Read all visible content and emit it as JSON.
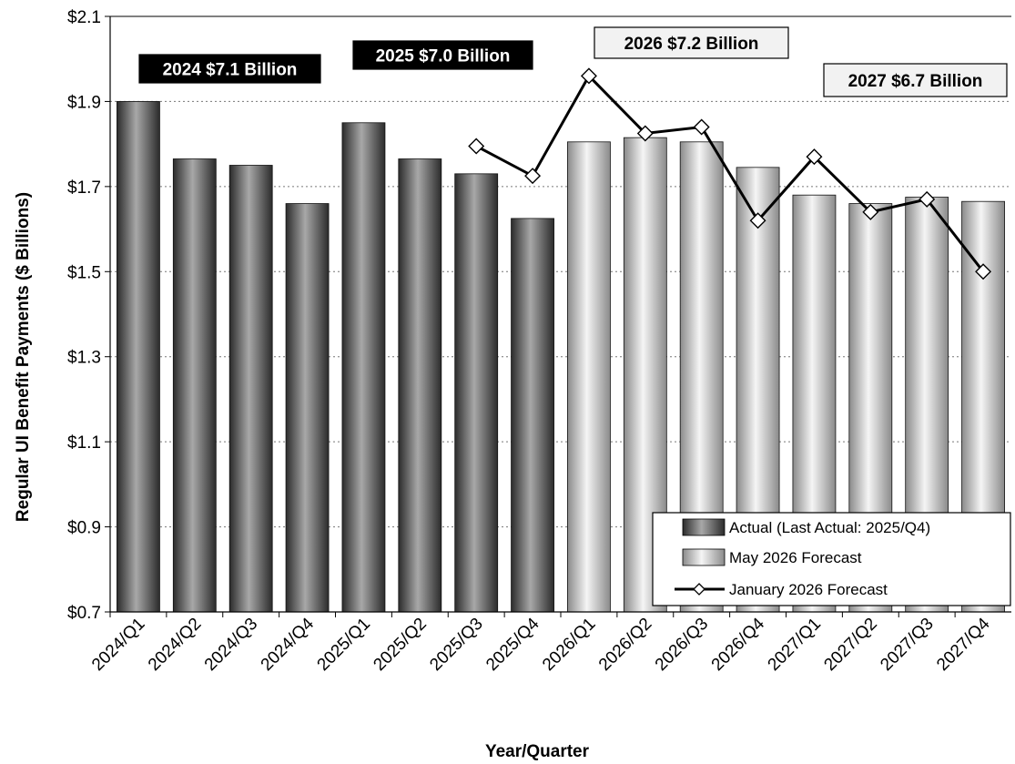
{
  "chart_data": {
    "type": "bar",
    "title": "",
    "xlabel": "Year/Quarter",
    "ylabel": "Regular UI Benefit Payments ($ Billions)",
    "ylim": [
      0.7,
      2.1
    ],
    "ytick_values": [
      0.7,
      0.9,
      1.1,
      1.3,
      1.5,
      1.7,
      1.9,
      2.1
    ],
    "ytick_labels": [
      "$0.7",
      "$0.9",
      "$1.1",
      "$1.3",
      "$1.5",
      "$1.7",
      "$1.9",
      "$2.1"
    ],
    "grid": "horizontal dotted",
    "legend_position": "bottom-right",
    "categories": [
      "2024/Q1",
      "2024/Q2",
      "2024/Q3",
      "2024/Q4",
      "2025/Q1",
      "2025/Q2",
      "2025/Q3",
      "2025/Q4",
      "2026/Q1",
      "2026/Q2",
      "2026/Q3",
      "2026/Q4",
      "2027/Q1",
      "2027/Q2",
      "2027/Q3",
      "2027/Q4"
    ],
    "series": [
      {
        "name": "Actual (Last Actual: 2025/Q4)",
        "kind": "bar",
        "style": "dark",
        "values": [
          1.9,
          1.765,
          1.75,
          1.66,
          1.85,
          1.765,
          1.73,
          1.625,
          null,
          null,
          null,
          null,
          null,
          null,
          null,
          null
        ]
      },
      {
        "name": "May 2026 Forecast",
        "kind": "bar",
        "style": "light",
        "values": [
          null,
          null,
          null,
          null,
          null,
          null,
          null,
          null,
          1.805,
          1.815,
          1.805,
          1.745,
          1.68,
          1.66,
          1.675,
          1.665
        ]
      },
      {
        "name": "January 2026 Forecast",
        "kind": "line",
        "values": [
          null,
          null,
          null,
          null,
          null,
          null,
          1.795,
          1.725,
          1.96,
          1.825,
          1.84,
          1.62,
          1.77,
          1.64,
          1.67,
          1.5
        ]
      }
    ],
    "annotations": [
      {
        "text": "2024 $7.1 Billion",
        "style": "dark"
      },
      {
        "text": "2025 $7.0 Billion",
        "style": "dark"
      },
      {
        "text": "2026 $7.2 Billion",
        "style": "light"
      },
      {
        "text": "2027 $6.7 Billion",
        "style": "light"
      }
    ],
    "colors": {
      "actual_dark": "#3a3a3a",
      "actual_mid": "#9a9a9a",
      "forecast_dark": "#7a7a7a",
      "forecast_light": "#f4f4f4",
      "line": "#000000",
      "marker_fill": "#ffffff"
    }
  }
}
